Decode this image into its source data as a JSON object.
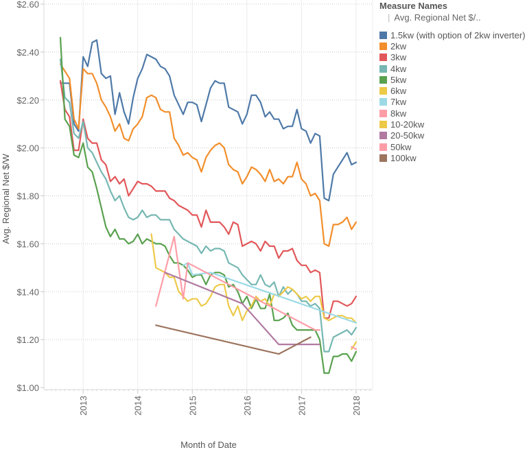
{
  "chart_data": {
    "type": "line",
    "title": "",
    "xlabel": "Month of Date",
    "ylabel": "Avg. Regional Net $/W",
    "ylim": [
      1.0,
      2.6
    ],
    "yticks": [
      1.0,
      1.2,
      1.4,
      1.6,
      1.8,
      2.0,
      2.2,
      2.4,
      2.6
    ],
    "ytick_labels": [
      "$1.00",
      "$1.20",
      "$1.40",
      "$1.60",
      "$1.80",
      "$2.00",
      "$2.20",
      "$2.40",
      "$2.60"
    ],
    "x_start": "2012-08",
    "x_end": "2018-01",
    "xtick_labels": [
      "2013",
      "2014",
      "2015",
      "2016",
      "2017",
      "2018"
    ],
    "grid": true,
    "legend_position": "right",
    "legend_title": "Measure Names",
    "legend_subtitle": "Avg. Regional Net $/..",
    "x_unit": "month index from Aug 2012",
    "series": [
      {
        "name": "1.5kw (with option of 2kw inverter)",
        "color": "#4e79a7",
        "x": [
          0,
          1,
          2,
          3,
          4,
          5,
          6,
          7,
          8,
          9,
          10,
          11,
          12,
          13,
          14,
          15,
          16,
          17,
          18,
          19,
          20,
          21,
          22,
          23,
          24,
          25,
          26,
          27,
          28,
          29,
          30,
          31,
          32,
          33,
          34,
          35,
          36,
          37,
          38,
          39,
          40,
          41,
          42,
          43,
          44,
          45,
          46,
          47,
          48,
          49,
          50,
          51,
          52,
          53,
          54,
          55,
          56,
          57,
          58,
          59,
          60,
          61,
          62,
          63,
          64,
          65
        ],
        "values": [
          2.27,
          2.27,
          2.27,
          2.1,
          2.07,
          2.38,
          2.34,
          2.44,
          2.45,
          2.31,
          2.29,
          2.3,
          2.14,
          2.23,
          2.15,
          2.1,
          2.21,
          2.29,
          2.33,
          2.39,
          2.38,
          2.37,
          2.34,
          2.33,
          2.3,
          2.22,
          2.18,
          2.14,
          2.19,
          2.19,
          2.18,
          2.11,
          2.18,
          2.25,
          2.28,
          2.27,
          2.27,
          2.17,
          2.16,
          2.15,
          2.1,
          2.14,
          2.22,
          2.22,
          2.19,
          2.13,
          2.15,
          2.12,
          2.12,
          2.08,
          2.09,
          2.09,
          2.16,
          2.08,
          2.07,
          2.02,
          2.06,
          2.05,
          1.79,
          1.78,
          1.89,
          1.92,
          1.95,
          1.98,
          1.93,
          1.94
        ]
      },
      {
        "name": "2kw",
        "color": "#f28e2b",
        "x": [
          0,
          1,
          2,
          3,
          4,
          5,
          6,
          7,
          8,
          9,
          10,
          11,
          12,
          13,
          14,
          15,
          16,
          17,
          18,
          19,
          20,
          21,
          22,
          23,
          24,
          25,
          26,
          27,
          28,
          29,
          30,
          31,
          32,
          33,
          34,
          35,
          36,
          37,
          38,
          39,
          40,
          41,
          42,
          43,
          44,
          45,
          46,
          47,
          48,
          49,
          50,
          51,
          52,
          53,
          54,
          55,
          56,
          57,
          58,
          59,
          60,
          61,
          62,
          63,
          64,
          65
        ],
        "values": [
          2.35,
          2.32,
          2.29,
          2.12,
          2.08,
          2.33,
          2.31,
          2.31,
          2.27,
          2.2,
          2.17,
          2.13,
          2.07,
          2.1,
          2.04,
          2.03,
          2.08,
          2.1,
          2.13,
          2.21,
          2.22,
          2.21,
          2.16,
          2.15,
          2.15,
          2.04,
          2.01,
          1.97,
          1.98,
          1.96,
          1.95,
          1.9,
          1.96,
          1.99,
          2.01,
          2.02,
          2.0,
          1.93,
          1.91,
          1.9,
          1.85,
          1.88,
          1.92,
          1.91,
          1.89,
          1.86,
          1.91,
          1.86,
          1.87,
          1.85,
          1.88,
          1.88,
          1.94,
          1.87,
          1.85,
          1.8,
          1.81,
          1.78,
          1.6,
          1.59,
          1.68,
          1.68,
          1.69,
          1.71,
          1.66,
          1.69
        ]
      },
      {
        "name": "3kw",
        "color": "#e15759",
        "x": [
          0,
          1,
          2,
          3,
          4,
          5,
          6,
          7,
          8,
          9,
          10,
          11,
          12,
          13,
          14,
          15,
          16,
          17,
          18,
          19,
          20,
          21,
          22,
          23,
          24,
          25,
          26,
          27,
          28,
          29,
          30,
          31,
          32,
          33,
          34,
          35,
          36,
          37,
          38,
          39,
          40,
          41,
          42,
          43,
          44,
          45,
          46,
          47,
          48,
          49,
          50,
          51,
          52,
          53,
          54,
          55,
          56,
          57,
          58,
          59,
          60,
          61,
          62,
          63,
          64,
          65
        ],
        "values": [
          2.28,
          2.16,
          2.13,
          1.99,
          1.99,
          2.12,
          2.04,
          2.02,
          2.02,
          1.95,
          1.93,
          1.86,
          1.88,
          1.85,
          1.87,
          1.8,
          1.83,
          1.86,
          1.85,
          1.85,
          1.84,
          1.82,
          1.82,
          1.82,
          1.79,
          1.78,
          1.76,
          1.75,
          1.74,
          1.72,
          1.72,
          1.67,
          1.74,
          1.69,
          1.69,
          1.69,
          1.67,
          1.64,
          1.69,
          1.68,
          1.59,
          1.6,
          1.61,
          1.6,
          1.57,
          1.61,
          1.59,
          1.59,
          1.54,
          1.57,
          1.57,
          1.58,
          1.53,
          1.51,
          1.51,
          1.48,
          1.49,
          1.48,
          1.29,
          1.29,
          1.36,
          1.36,
          1.35,
          1.34,
          1.35,
          1.38
        ]
      },
      {
        "name": "4kw",
        "color": "#76b7b2",
        "x": [
          0,
          1,
          2,
          3,
          4,
          5,
          6,
          7,
          8,
          9,
          10,
          11,
          12,
          13,
          14,
          15,
          16,
          17,
          18,
          19,
          20,
          21,
          22,
          23,
          24,
          25,
          26,
          27,
          28,
          29,
          30,
          31,
          32,
          33,
          34,
          35,
          36,
          37,
          38,
          39,
          40,
          41,
          42,
          43,
          44,
          45,
          46,
          47,
          48,
          49,
          50,
          51,
          52,
          53,
          54,
          55,
          56,
          57,
          58,
          59,
          60,
          61,
          62,
          63,
          64,
          65
        ],
        "values": [
          2.37,
          2.21,
          2.19,
          2.06,
          2.04,
          2.11,
          2.0,
          1.98,
          1.94,
          1.9,
          1.87,
          1.82,
          1.78,
          1.8,
          1.75,
          1.71,
          1.7,
          1.71,
          1.74,
          1.71,
          1.72,
          1.72,
          1.7,
          1.7,
          1.7,
          1.66,
          1.64,
          1.62,
          1.61,
          1.6,
          1.59,
          1.56,
          1.59,
          1.57,
          1.58,
          1.58,
          1.57,
          1.52,
          1.51,
          1.5,
          1.47,
          1.45,
          1.43,
          1.43,
          1.47,
          1.43,
          1.42,
          1.44,
          1.38,
          1.42,
          1.39,
          1.41,
          1.39,
          1.36,
          1.36,
          1.34,
          1.35,
          1.33,
          1.15,
          1.15,
          1.21,
          1.22,
          1.23,
          1.24,
          1.22,
          1.25
        ]
      },
      {
        "name": "5kw",
        "color": "#59a14f",
        "x": [
          0,
          1,
          2,
          3,
          4,
          5,
          6,
          7,
          8,
          9,
          10,
          11,
          12,
          13,
          14,
          15,
          16,
          17,
          18,
          19,
          20,
          21,
          22,
          23,
          24,
          25,
          26,
          27,
          28,
          29,
          30,
          31,
          32,
          33,
          34,
          35,
          36,
          37,
          38,
          39,
          40,
          41,
          42,
          43,
          44,
          45,
          46,
          47,
          48,
          49,
          50,
          51,
          52,
          53,
          54,
          55,
          56,
          57,
          58,
          59,
          60,
          61,
          62,
          63,
          64,
          65
        ],
        "values": [
          2.46,
          2.12,
          2.09,
          1.97,
          1.96,
          2.02,
          1.92,
          1.9,
          1.83,
          1.75,
          1.67,
          1.63,
          1.66,
          1.62,
          1.62,
          1.6,
          1.61,
          1.64,
          1.6,
          1.62,
          1.61,
          1.6,
          1.6,
          1.59,
          1.55,
          1.52,
          1.52,
          1.51,
          1.49,
          1.46,
          1.47,
          1.47,
          1.43,
          1.47,
          1.48,
          1.48,
          1.47,
          1.42,
          1.43,
          1.4,
          1.35,
          1.38,
          1.33,
          1.37,
          1.33,
          1.33,
          1.39,
          1.28,
          1.28,
          1.29,
          1.31,
          1.26,
          1.24,
          1.24,
          1.24,
          1.24,
          1.24,
          1.2,
          1.06,
          1.06,
          1.13,
          1.13,
          1.14,
          1.14,
          1.11,
          1.15
        ]
      },
      {
        "name": "6kw",
        "color": "#edc948",
        "x": [
          20,
          21,
          22,
          23,
          24,
          25,
          26,
          27,
          28,
          29,
          30,
          31,
          32,
          33,
          34,
          35,
          36,
          37,
          38,
          39,
          40,
          41,
          42,
          43,
          44,
          45,
          46,
          47,
          48,
          49,
          50,
          51,
          52,
          53,
          54,
          55,
          56,
          57,
          58,
          59,
          60,
          61,
          62,
          63,
          64,
          65
        ],
        "values": [
          1.64,
          1.5,
          1.49,
          1.48,
          1.46,
          1.46,
          1.4,
          1.38,
          1.36,
          1.37,
          1.37,
          1.34,
          1.35,
          1.38,
          1.42,
          1.43,
          1.43,
          1.34,
          1.3,
          1.34,
          1.28,
          1.32,
          1.34,
          1.38,
          1.36,
          1.37,
          1.34,
          1.39,
          1.38,
          1.4,
          1.42,
          1.41,
          1.39,
          1.37,
          1.38,
          1.36,
          1.38,
          1.38,
          1.29,
          1.28,
          1.29,
          1.3,
          1.3,
          1.29,
          1.29,
          1.27
        ]
      },
      {
        "name": "7kw",
        "color": "#9cdae6",
        "x": [
          27,
          28,
          29,
          33,
          65
        ],
        "values": [
          1.51,
          1.52,
          1.47,
          1.48,
          1.27
        ]
      },
      {
        "name": "8kw",
        "color": "#ff9da7",
        "x": [
          21,
          25,
          26,
          27,
          28,
          29,
          56,
          57
        ],
        "values": [
          1.34,
          1.63,
          1.5,
          1.37,
          1.52,
          1.51,
          1.24,
          1.24
        ]
      },
      {
        "name": "10-20kw",
        "color": "#edc948",
        "x": [
          64,
          65
        ],
        "values": [
          1.16,
          1.19
        ]
      },
      {
        "name": "20-50kw",
        "color": "#b07aa1",
        "x": [
          23,
          40,
          48,
          57
        ],
        "values": [
          1.48,
          1.35,
          1.18,
          1.18
        ]
      },
      {
        "name": "50kw",
        "color": "#ff9da7",
        "x": [
          64,
          65
        ],
        "values": [
          1.17,
          1.16
        ]
      },
      {
        "name": "100kw",
        "color": "#9c755f",
        "x": [
          21,
          48,
          55
        ],
        "values": [
          1.26,
          1.14,
          1.21
        ]
      }
    ]
  }
}
